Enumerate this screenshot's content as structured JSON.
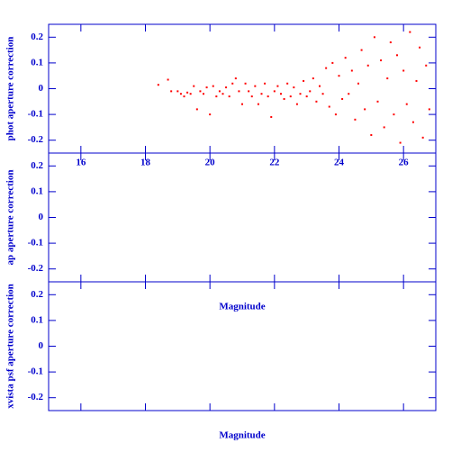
{
  "chart_data": [
    {
      "type": "scatter",
      "ylabel": "phot aperture correction",
      "color": "#ff0000",
      "xlim": [
        15,
        27
      ],
      "xticks": [
        16,
        18,
        20,
        22,
        24,
        26
      ],
      "xtick_labels": true,
      "ylim": [
        -0.25,
        0.25
      ],
      "yticks": [
        -0.2,
        -0.1,
        0,
        0.1,
        0.2
      ],
      "x": [
        18.4,
        18.7,
        18.8,
        19.0,
        19.1,
        19.2,
        19.3,
        19.4,
        19.5,
        19.6,
        19.7,
        19.8,
        19.9,
        20.0,
        20.1,
        20.2,
        20.3,
        20.4,
        20.5,
        20.6,
        20.7,
        20.8,
        20.9,
        21.0,
        21.1,
        21.2,
        21.3,
        21.4,
        21.5,
        21.6,
        21.7,
        21.8,
        21.9,
        22.0,
        22.1,
        22.2,
        22.3,
        22.4,
        22.5,
        22.6,
        22.7,
        22.8,
        22.9,
        23.0,
        23.1,
        23.2,
        23.3,
        23.4,
        23.5,
        23.6,
        23.7,
        23.8,
        23.9,
        24.0,
        24.1,
        24.2,
        24.3,
        24.4,
        24.5,
        24.6,
        24.7,
        24.8,
        24.9,
        25.0,
        25.1,
        25.2,
        25.3,
        25.4,
        25.5,
        25.6,
        25.7,
        25.8,
        25.9,
        26.0,
        26.1,
        26.2,
        26.3,
        26.4,
        26.5,
        26.6,
        26.7,
        26.8
      ],
      "y": [
        0.015,
        0.035,
        -0.01,
        -0.01,
        -0.02,
        -0.03,
        -0.015,
        -0.02,
        0.01,
        -0.08,
        -0.01,
        -0.02,
        0.005,
        -0.1,
        0.01,
        -0.03,
        -0.01,
        -0.02,
        0.005,
        -0.03,
        0.02,
        0.04,
        -0.01,
        -0.06,
        0.02,
        -0.01,
        -0.03,
        0.01,
        -0.06,
        -0.02,
        0.02,
        -0.03,
        -0.11,
        -0.01,
        0.01,
        -0.02,
        -0.04,
        0.02,
        -0.03,
        0.005,
        -0.06,
        -0.02,
        0.03,
        -0.03,
        -0.01,
        0.04,
        -0.05,
        0.01,
        -0.02,
        0.08,
        -0.07,
        0.1,
        -0.1,
        0.05,
        -0.04,
        0.12,
        -0.02,
        0.07,
        -0.12,
        0.02,
        0.15,
        -0.08,
        0.09,
        -0.18,
        0.2,
        -0.05,
        0.11,
        -0.15,
        0.04,
        0.18,
        -0.1,
        0.13,
        -0.21,
        0.07,
        -0.06,
        0.22,
        -0.13,
        0.03,
        0.16,
        -0.19,
        0.09,
        -0.08
      ]
    },
    {
      "type": "scatter",
      "ylabel": "ap aperture correction",
      "xlabel": "Magnitude",
      "xlim": [
        15,
        27
      ],
      "xticks": [
        16,
        18,
        20,
        22,
        24,
        26
      ],
      "xtick_labels": false,
      "ylim": [
        -0.25,
        0.25
      ],
      "yticks": [
        -0.2,
        -0.1,
        0,
        0.1,
        0.2
      ]
    },
    {
      "type": "scatter",
      "ylabel": "xvista psf aperture correction",
      "xlabel": "Magnitude",
      "xlim": [
        15,
        27
      ],
      "xticks": [
        16,
        18,
        20,
        22,
        24,
        26
      ],
      "xtick_labels": false,
      "ylim": [
        -0.25,
        0.25
      ],
      "yticks": [
        -0.2,
        -0.1,
        0,
        0.1,
        0.2
      ]
    }
  ]
}
